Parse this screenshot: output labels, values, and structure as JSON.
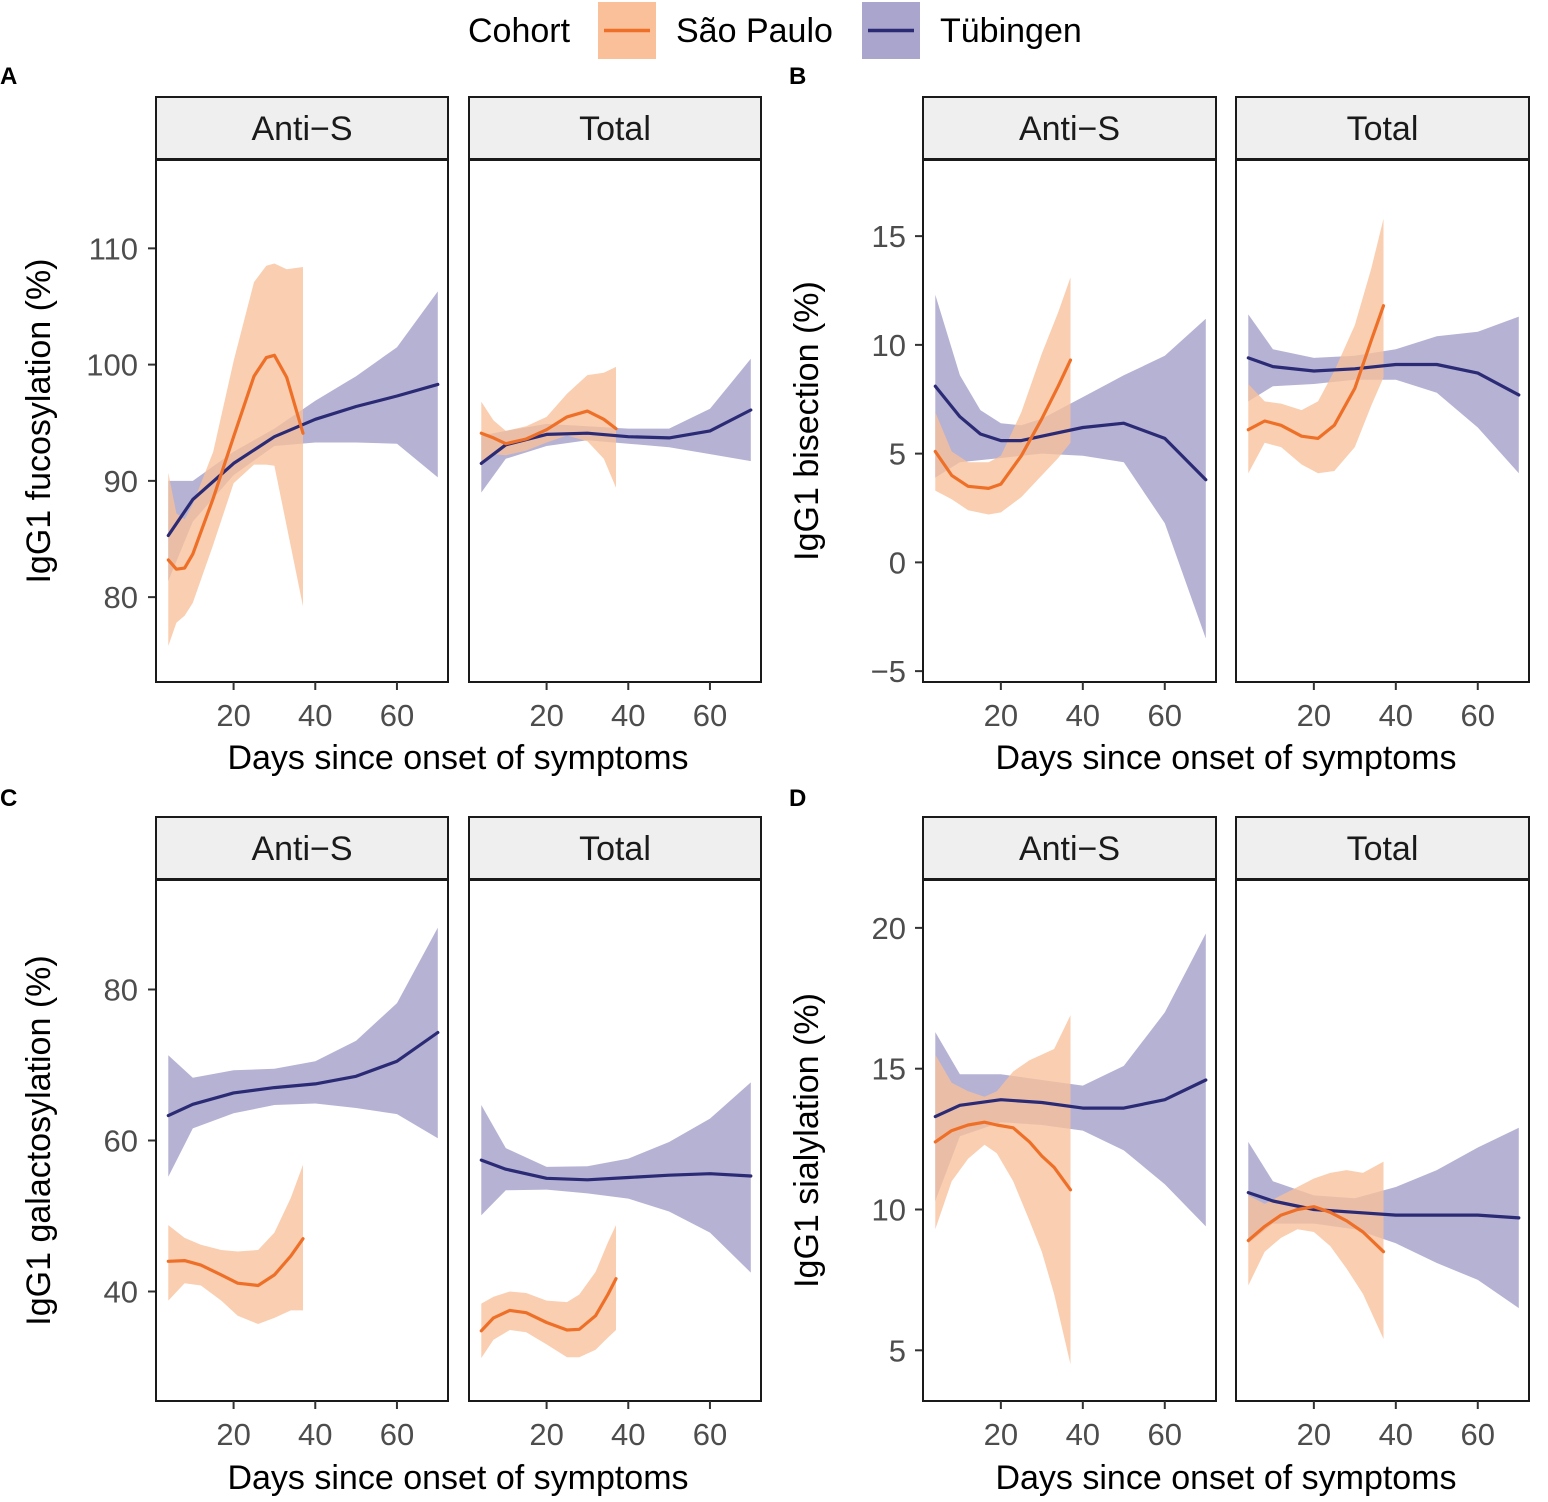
{
  "legend": {
    "title": "Cohort",
    "entries": [
      {
        "label": "São Paulo",
        "line_color": "#ee7028",
        "fill_color": "#f9c09a"
      },
      {
        "label": "Tübingen",
        "line_color": "#2b2a75",
        "fill_color": "#a9a5cd"
      }
    ]
  },
  "colors": {
    "sao_paulo_line": "#ee7028",
    "sao_paulo_band": "#f9c09a",
    "tubingen_line": "#2b2a75",
    "tubingen_band": "#a9a5cd",
    "strip_bg": "#efefef"
  },
  "chart_data": [
    {
      "tag": "A",
      "type": "line",
      "ylabel": "IgG1 fucosylation (%)",
      "xlabel": "Days since onset of symptoms",
      "xlim": [
        1,
        72.5
      ],
      "ylim": [
        72.7,
        117.6
      ],
      "xticks": [
        20,
        40,
        60
      ],
      "yticks": [
        80,
        90,
        100,
        110
      ],
      "facets": [
        {
          "strip": "Anti−S",
          "series": [
            {
              "name": "Tübingen",
              "x": [
                4,
                10,
                20,
                30,
                40,
                50,
                60,
                70
              ],
              "y": [
                85.3,
                88.4,
                91.5,
                93.8,
                95.3,
                96.4,
                97.3,
                98.3
              ],
              "lower": [
                81.4,
                86.5,
                90.5,
                93.0,
                93.3,
                93.3,
                93.2,
                90.3
              ],
              "upper": [
                90.0,
                90.0,
                92.5,
                94.5,
                96.9,
                99.0,
                101.5,
                106.3
              ]
            },
            {
              "name": "São Paulo",
              "x": [
                4,
                6,
                8,
                10,
                15,
                20,
                25,
                28,
                30,
                33,
                37
              ],
              "y": [
                83.2,
                82.4,
                82.5,
                83.7,
                88.5,
                93.8,
                99.0,
                100.6,
                100.8,
                98.9,
                94.1
              ],
              "lower": [
                75.8,
                77.8,
                78.4,
                79.5,
                84.5,
                89.8,
                91.4,
                91.4,
                91.3,
                86.1,
                79.2
              ],
              "upper": [
                90.7,
                87.2,
                86.7,
                88.0,
                92.5,
                100.3,
                107.1,
                108.5,
                108.7,
                108.2,
                108.4
              ]
            }
          ]
        },
        {
          "strip": "Total",
          "series": [
            {
              "name": "Tübingen",
              "x": [
                4,
                10,
                20,
                30,
                40,
                50,
                60,
                70
              ],
              "y": [
                91.5,
                93.1,
                94.0,
                94.1,
                93.8,
                93.7,
                94.3,
                96.1
              ],
              "lower": [
                89.0,
                91.9,
                93.0,
                93.5,
                93.2,
                92.9,
                92.3,
                91.7
              ],
              "upper": [
                93.9,
                94.3,
                94.9,
                94.7,
                94.5,
                94.5,
                96.2,
                100.5
              ]
            },
            {
              "name": "São Paulo",
              "x": [
                4,
                7,
                10,
                15,
                20,
                25,
                30,
                34,
                37
              ],
              "y": [
                94.1,
                93.7,
                93.2,
                93.6,
                94.4,
                95.5,
                96.0,
                95.3,
                94.5
              ],
              "lower": [
                91.6,
                92.3,
                92.2,
                92.6,
                93.3,
                93.9,
                93.4,
                91.9,
                89.4
              ],
              "upper": [
                96.8,
                95.2,
                94.3,
                94.7,
                95.5,
                97.5,
                99.1,
                99.3,
                99.8
              ]
            }
          ]
        }
      ]
    },
    {
      "tag": "B",
      "type": "line",
      "ylabel": "IgG1 bisection (%)",
      "xlabel": "Days since onset of symptoms",
      "xlim": [
        1,
        72.5
      ],
      "ylim": [
        -5.5,
        18.5
      ],
      "xticks": [
        20,
        40,
        60
      ],
      "yticks": [
        -5,
        0,
        5,
        10,
        15
      ],
      "facets": [
        {
          "strip": "Anti−S",
          "series": [
            {
              "name": "Tübingen",
              "x": [
                4,
                10,
                15,
                20,
                25,
                30,
                40,
                50,
                60,
                70
              ],
              "y": [
                8.1,
                6.7,
                5.9,
                5.6,
                5.6,
                5.8,
                6.2,
                6.4,
                5.7,
                3.8
              ],
              "lower": [
                3.9,
                4.6,
                4.7,
                4.8,
                4.9,
                5.0,
                4.9,
                4.6,
                1.8,
                -3.5
              ],
              "upper": [
                12.3,
                8.6,
                7.0,
                6.4,
                6.3,
                6.6,
                7.6,
                8.6,
                9.5,
                11.2
              ]
            },
            {
              "name": "São Paulo",
              "x": [
                4,
                8,
                12,
                17,
                20,
                25,
                30,
                34,
                37
              ],
              "y": [
                5.1,
                4.0,
                3.5,
                3.4,
                3.6,
                4.9,
                6.6,
                8.1,
                9.3
              ],
              "lower": [
                3.3,
                2.9,
                2.4,
                2.2,
                2.3,
                3.0,
                4.0,
                4.8,
                5.5
              ],
              "upper": [
                6.9,
                5.1,
                4.6,
                4.6,
                4.9,
                6.9,
                9.6,
                11.5,
                13.1
              ]
            }
          ]
        },
        {
          "strip": "Total",
          "series": [
            {
              "name": "Tübingen",
              "x": [
                4,
                10,
                20,
                30,
                40,
                50,
                60,
                70
              ],
              "y": [
                9.4,
                9.0,
                8.8,
                8.9,
                9.1,
                9.1,
                8.7,
                7.7
              ],
              "lower": [
                7.4,
                8.1,
                8.2,
                8.4,
                8.4,
                7.8,
                6.2,
                4.1
              ],
              "upper": [
                11.4,
                9.8,
                9.4,
                9.5,
                9.8,
                10.4,
                10.6,
                11.3
              ]
            },
            {
              "name": "São Paulo",
              "x": [
                4,
                8,
                12,
                17,
                21,
                25,
                30,
                34,
                37
              ],
              "y": [
                6.1,
                6.5,
                6.3,
                5.8,
                5.7,
                6.3,
                8.0,
                10.2,
                11.8
              ],
              "lower": [
                4.1,
                5.5,
                5.3,
                4.5,
                4.1,
                4.2,
                5.3,
                7.2,
                8.5
              ],
              "upper": [
                8.2,
                7.4,
                7.3,
                7.0,
                7.4,
                8.8,
                10.9,
                13.5,
                15.8
              ]
            }
          ]
        }
      ]
    },
    {
      "tag": "C",
      "type": "line",
      "ylabel": "IgG1 galactosylation (%)",
      "xlabel": "Days since onset of symptoms",
      "xlim": [
        1,
        72.5
      ],
      "ylim": [
        25.5,
        94.5
      ],
      "xticks": [
        20,
        40,
        60
      ],
      "yticks": [
        40,
        60,
        80
      ],
      "facets": [
        {
          "strip": "Anti−S",
          "series": [
            {
              "name": "Tübingen",
              "x": [
                4,
                10,
                20,
                30,
                40,
                50,
                60,
                70
              ],
              "y": [
                63.3,
                64.8,
                66.3,
                67.0,
                67.5,
                68.5,
                70.5,
                74.3
              ],
              "lower": [
                55.2,
                61.6,
                63.6,
                64.7,
                64.9,
                64.3,
                63.5,
                60.3
              ],
              "upper": [
                71.3,
                68.3,
                69.3,
                69.5,
                70.5,
                73.2,
                78.2,
                88.2
              ]
            },
            {
              "name": "São Paulo",
              "x": [
                4,
                8,
                12,
                17,
                21,
                26,
                30,
                34,
                37
              ],
              "y": [
                44.0,
                44.1,
                43.5,
                42.2,
                41.1,
                40.8,
                42.2,
                44.7,
                47.0
              ],
              "lower": [
                38.8,
                41.1,
                40.8,
                38.8,
                36.8,
                35.7,
                36.5,
                37.5,
                37.5
              ],
              "upper": [
                48.8,
                47.1,
                46.2,
                45.5,
                45.3,
                45.5,
                47.8,
                52.4,
                56.8
              ]
            }
          ]
        },
        {
          "strip": "Total",
          "series": [
            {
              "name": "Tübingen",
              "x": [
                4,
                10,
                20,
                30,
                40,
                50,
                60,
                70
              ],
              "y": [
                57.4,
                56.2,
                55.0,
                54.8,
                55.1,
                55.4,
                55.6,
                55.3
              ],
              "lower": [
                50.1,
                53.4,
                53.5,
                53.0,
                52.3,
                50.6,
                47.8,
                42.5
              ],
              "upper": [
                64.7,
                59.0,
                56.5,
                56.6,
                57.6,
                59.8,
                62.9,
                67.7
              ]
            },
            {
              "name": "São Paulo",
              "x": [
                4,
                7,
                11,
                15,
                20,
                25,
                28,
                32,
                35,
                37
              ],
              "y": [
                34.8,
                36.5,
                37.5,
                37.2,
                35.9,
                34.9,
                35.0,
                36.8,
                39.6,
                41.7
              ],
              "lower": [
                31.2,
                33.6,
                34.9,
                34.6,
                33.0,
                31.3,
                31.3,
                32.3,
                33.9,
                34.9
              ],
              "upper": [
                38.4,
                39.3,
                40.0,
                39.8,
                38.8,
                38.6,
                39.6,
                42.6,
                46.5,
                48.8
              ]
            }
          ]
        }
      ]
    },
    {
      "tag": "D",
      "type": "line",
      "ylabel": "IgG1 sialylation (%)",
      "xlabel": "Days since onset of symptoms",
      "xlim": [
        1,
        72.5
      ],
      "ylim": [
        3.2,
        21.7
      ],
      "xticks": [
        20,
        40,
        60
      ],
      "yticks": [
        5,
        10,
        15,
        20
      ],
      "facets": [
        {
          "strip": "Anti−S",
          "series": [
            {
              "name": "Tübingen",
              "x": [
                4,
                10,
                20,
                30,
                40,
                50,
                60,
                70
              ],
              "y": [
                13.3,
                13.7,
                13.9,
                13.8,
                13.6,
                13.6,
                13.9,
                14.6
              ],
              "lower": [
                10.3,
                12.6,
                13.1,
                13.0,
                12.8,
                12.1,
                10.9,
                9.4
              ],
              "upper": [
                16.3,
                14.8,
                14.8,
                14.6,
                14.4,
                15.1,
                17.0,
                19.8
              ]
            },
            {
              "name": "São Paulo",
              "x": [
                4,
                8,
                12,
                16,
                19,
                23,
                27,
                30,
                33,
                37
              ],
              "y": [
                12.4,
                12.8,
                13.0,
                13.1,
                13.0,
                12.9,
                12.4,
                11.9,
                11.5,
                10.7
              ],
              "lower": [
                9.3,
                11.0,
                11.8,
                12.3,
                12.0,
                11.0,
                9.6,
                8.5,
                7.0,
                4.5
              ],
              "upper": [
                15.5,
                14.5,
                14.2,
                14.0,
                14.2,
                14.9,
                15.3,
                15.5,
                15.7,
                16.9
              ]
            }
          ]
        },
        {
          "strip": "Total",
          "series": [
            {
              "name": "Tübingen",
              "x": [
                4,
                10,
                20,
                30,
                40,
                50,
                60,
                70
              ],
              "y": [
                10.6,
                10.3,
                10.0,
                9.9,
                9.8,
                9.8,
                9.8,
                9.7
              ],
              "lower": [
                8.8,
                9.5,
                9.5,
                9.3,
                8.8,
                8.1,
                7.5,
                6.5
              ],
              "upper": [
                12.4,
                11.0,
                10.5,
                10.4,
                10.8,
                11.4,
                12.2,
                12.9
              ]
            },
            {
              "name": "São Paulo",
              "x": [
                4,
                8,
                12,
                16,
                20,
                24,
                28,
                32,
                37
              ],
              "y": [
                8.9,
                9.4,
                9.8,
                10.0,
                10.1,
                9.9,
                9.6,
                9.2,
                8.5
              ],
              "lower": [
                7.3,
                8.5,
                9.0,
                9.3,
                9.2,
                8.7,
                7.9,
                7.0,
                5.4
              ],
              "upper": [
                10.5,
                10.2,
                10.5,
                10.8,
                11.1,
                11.3,
                11.4,
                11.3,
                11.7
              ]
            }
          ]
        }
      ]
    }
  ]
}
